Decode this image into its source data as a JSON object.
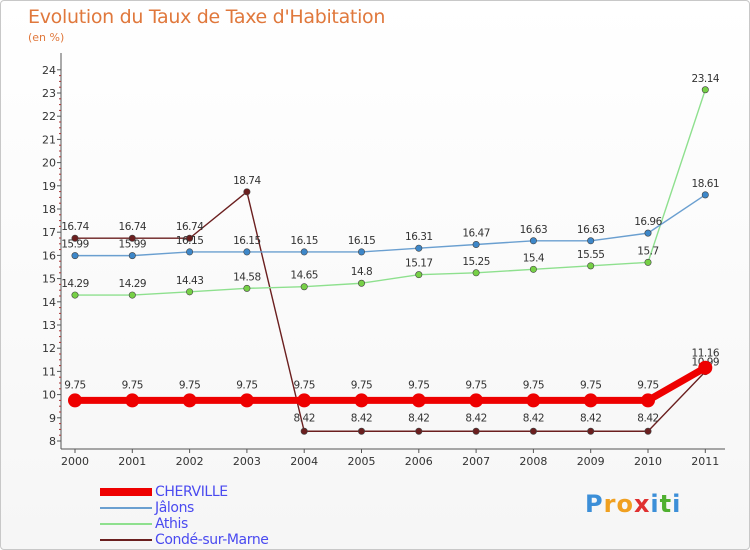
{
  "header": {
    "title": "Evolution du Taux de Taxe d'Habitation",
    "subtitle": "(en %)"
  },
  "chart_data": {
    "type": "line",
    "x": [
      "2000",
      "2001",
      "2002",
      "2003",
      "2004",
      "2005",
      "2006",
      "2007",
      "2008",
      "2009",
      "2010",
      "2011"
    ],
    "ylim": [
      8,
      24
    ],
    "yticks": [
      8,
      9,
      10,
      11,
      12,
      13,
      14,
      15,
      16,
      17,
      18,
      19,
      20,
      21,
      22,
      23,
      24
    ],
    "grid": false,
    "legend_position": "bottom-left",
    "series": [
      {
        "name": "Condé-sur-Marne",
        "color": "#6b1f1f",
        "marker_color": "#6b1f1f",
        "values": [
          16.74,
          16.74,
          16.74,
          18.74,
          8.42,
          8.42,
          8.42,
          8.42,
          8.42,
          8.42,
          8.42,
          10.99
        ],
        "labels": [
          "16.74",
          "16.74",
          "16.74",
          "18.74",
          "8.42",
          "8.42",
          "8.42",
          "8.42",
          "8.42",
          "8.42",
          "8.42",
          "10.99"
        ]
      },
      {
        "name": "Athis",
        "color": "#8ee08e",
        "marker_color": "#76d046",
        "values": [
          14.29,
          14.29,
          14.43,
          14.58,
          14.65,
          14.8,
          15.17,
          15.25,
          15.4,
          15.55,
          15.7,
          23.14
        ],
        "labels": [
          "14.29",
          "14.29",
          "14.43",
          "14.58",
          "14.65",
          "14.8",
          "15.17",
          "15.25",
          "15.4",
          "15.55",
          "15.7",
          "23.14"
        ]
      },
      {
        "name": "Jâlons",
        "color": "#6a9fd0",
        "marker_color": "#3d87c9",
        "values": [
          15.99,
          15.99,
          16.15,
          16.15,
          16.15,
          16.15,
          16.31,
          16.47,
          16.63,
          16.63,
          16.96,
          18.61
        ],
        "labels": [
          "15.99",
          "15.99",
          "16.15",
          "16.15",
          "16.15",
          "16.15",
          "16.31",
          "16.47",
          "16.63",
          "16.63",
          "16.96",
          "18.61"
        ]
      },
      {
        "name": "CHERVILLE",
        "color": "#ee0000",
        "marker_color": "#ee0000",
        "values": [
          9.75,
          9.75,
          9.75,
          9.75,
          9.75,
          9.75,
          9.75,
          9.75,
          9.75,
          9.75,
          9.75,
          11.16
        ],
        "labels": [
          "9.75",
          "9.75",
          "9.75",
          "9.75",
          "9.75",
          "9.75",
          "9.75",
          "9.75",
          "9.75",
          "9.75",
          "9.75",
          "11.16"
        ]
      }
    ]
  },
  "legend": {
    "items": [
      {
        "label": "CHERVILLE",
        "color": "#ee0000"
      },
      {
        "label": "Jâlons",
        "color": "#6a9fd0"
      },
      {
        "label": "Athis",
        "color": "#8ee08e"
      },
      {
        "label": "Condé-sur-Marne",
        "color": "#6b1f1f"
      }
    ]
  },
  "logo": {
    "letters": [
      "P",
      "r",
      "o",
      "x",
      "i",
      "t",
      "i"
    ],
    "colors": [
      "#3c8fd8",
      "#f0a020",
      "#f0a020",
      "#e03030",
      "#3c8fd8",
      "#50b030",
      "#3c8fd8"
    ]
  }
}
